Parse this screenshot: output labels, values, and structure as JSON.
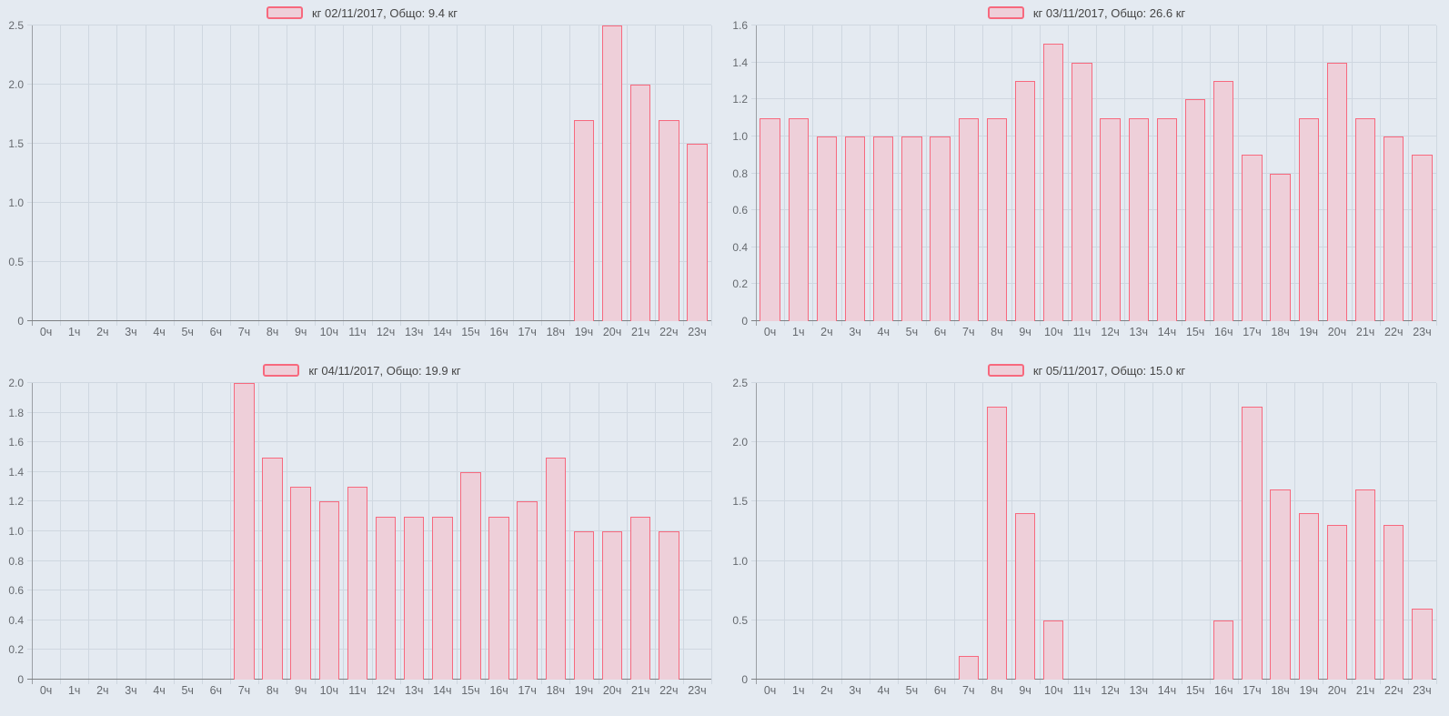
{
  "colors": {
    "background": "#e4eaf1",
    "gridline": "#cfd7e0",
    "bar_fill": "#eecfd9",
    "bar_border": "#f7697e",
    "axis_text": "#65696e",
    "legend_text": "#454545",
    "x_axis_line": "#7d8083",
    "y_axis_line": "#9b9fa4"
  },
  "chart_data": [
    {
      "type": "bar",
      "legend": "кг 02/11/2017, Общо: 9.4 кг",
      "categories": [
        "0ч",
        "1ч",
        "2ч",
        "3ч",
        "4ч",
        "5ч",
        "6ч",
        "7ч",
        "8ч",
        "9ч",
        "10ч",
        "11ч",
        "12ч",
        "13ч",
        "14ч",
        "15ч",
        "16ч",
        "17ч",
        "18ч",
        "19ч",
        "20ч",
        "21ч",
        "22ч",
        "23ч"
      ],
      "values": [
        0,
        0,
        0,
        0,
        0,
        0,
        0,
        0,
        0,
        0,
        0,
        0,
        0,
        0,
        0,
        0,
        0,
        0,
        0,
        1.7,
        2.5,
        2.0,
        1.7,
        1.5
      ],
      "ylim": [
        0,
        2.5
      ],
      "ytick_step": 0.5,
      "yticks": [
        "0",
        "0.5",
        "1.0",
        "1.5",
        "2.0",
        "2.5"
      ],
      "grid": true,
      "legend_position": "top-center"
    },
    {
      "type": "bar",
      "legend": "кг 03/11/2017, Общо: 26.6 кг",
      "categories": [
        "0ч",
        "1ч",
        "2ч",
        "3ч",
        "4ч",
        "5ч",
        "6ч",
        "7ч",
        "8ч",
        "9ч",
        "10ч",
        "11ч",
        "12ч",
        "13ч",
        "14ч",
        "15ч",
        "16ч",
        "17ч",
        "18ч",
        "19ч",
        "20ч",
        "21ч",
        "22ч",
        "23ч"
      ],
      "values": [
        1.1,
        1.1,
        1.0,
        1.0,
        1.0,
        1.0,
        1.0,
        1.1,
        1.1,
        1.3,
        1.5,
        1.4,
        1.1,
        1.1,
        1.1,
        1.2,
        1.3,
        0.9,
        0.8,
        1.1,
        1.4,
        1.1,
        1.0,
        0.9
      ],
      "ylim": [
        0,
        1.6
      ],
      "ytick_step": 0.2,
      "yticks": [
        "0",
        "0.2",
        "0.4",
        "0.6",
        "0.8",
        "1.0",
        "1.2",
        "1.4",
        "1.6"
      ],
      "grid": true,
      "legend_position": "top-center"
    },
    {
      "type": "bar",
      "legend": "кг 04/11/2017, Общо: 19.9 кг",
      "categories": [
        "0ч",
        "1ч",
        "2ч",
        "3ч",
        "4ч",
        "5ч",
        "6ч",
        "7ч",
        "8ч",
        "9ч",
        "10ч",
        "11ч",
        "12ч",
        "13ч",
        "14ч",
        "15ч",
        "16ч",
        "17ч",
        "18ч",
        "19ч",
        "20ч",
        "21ч",
        "22ч",
        "23ч"
      ],
      "values": [
        0,
        0,
        0,
        0,
        0,
        0,
        0,
        2.0,
        1.5,
        1.3,
        1.2,
        1.3,
        1.1,
        1.1,
        1.1,
        1.4,
        1.1,
        1.2,
        1.5,
        1.0,
        1.0,
        1.1,
        1.0,
        0
      ],
      "ylim": [
        0,
        2.0
      ],
      "ytick_step": 0.2,
      "yticks": [
        "0",
        "0.2",
        "0.4",
        "0.6",
        "0.8",
        "1.0",
        "1.2",
        "1.4",
        "1.6",
        "1.8",
        "2.0"
      ],
      "grid": true,
      "legend_position": "top-center"
    },
    {
      "type": "bar",
      "legend": "кг 05/11/2017, Общо: 15.0 кг",
      "categories": [
        "0ч",
        "1ч",
        "2ч",
        "3ч",
        "4ч",
        "5ч",
        "6ч",
        "7ч",
        "8ч",
        "9ч",
        "10ч",
        "11ч",
        "12ч",
        "13ч",
        "14ч",
        "15ч",
        "16ч",
        "17ч",
        "18ч",
        "19ч",
        "20ч",
        "21ч",
        "22ч",
        "23ч"
      ],
      "values": [
        0,
        0,
        0,
        0,
        0,
        0,
        0,
        0.2,
        2.3,
        1.4,
        0.5,
        0,
        0,
        0,
        0,
        0,
        0.5,
        2.3,
        1.6,
        1.4,
        1.3,
        1.6,
        1.3,
        0.6
      ],
      "ylim": [
        0,
        2.5
      ],
      "ytick_step": 0.5,
      "yticks": [
        "0",
        "0.5",
        "1.0",
        "1.5",
        "2.0",
        "2.5"
      ],
      "grid": true,
      "legend_position": "top-center"
    }
  ]
}
